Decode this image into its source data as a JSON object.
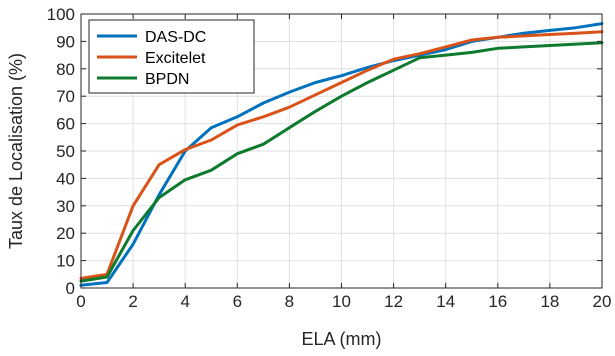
{
  "chart_data": {
    "type": "line",
    "xlabel": "ELA (mm)",
    "ylabel": "Taux de Localisation (%)",
    "xlim": [
      0,
      20
    ],
    "ylim": [
      0,
      100
    ],
    "xticks": [
      0,
      2,
      4,
      6,
      8,
      10,
      12,
      14,
      16,
      18,
      20
    ],
    "yticks": [
      0,
      10,
      20,
      30,
      40,
      50,
      60,
      70,
      80,
      90,
      100
    ],
    "grid": true,
    "legend_position": "top-left",
    "x": [
      0,
      1,
      2,
      3,
      4,
      5,
      6,
      7,
      8,
      9,
      10,
      11,
      12,
      13,
      14,
      15,
      16,
      17,
      18,
      19,
      20
    ],
    "series": [
      {
        "name": "DAS-DC",
        "color": "#0072BD",
        "values": [
          1,
          2,
          16,
          34,
          50,
          58.5,
          62.5,
          67.5,
          71.5,
          75,
          77.5,
          80.5,
          83,
          85,
          87,
          90,
          91.5,
          93,
          94,
          95,
          96.5
        ]
      },
      {
        "name": "Excitelet",
        "color": "#D95319",
        "values": [
          3.5,
          5,
          30,
          45,
          50.5,
          54,
          59.5,
          62.5,
          66,
          70.5,
          75,
          79.5,
          83.5,
          85.5,
          88,
          90.5,
          91.5,
          92,
          92.5,
          93,
          93.5
        ]
      },
      {
        "name": "BPDN",
        "color": "#0D7A2E",
        "values": [
          2.5,
          4,
          21,
          33,
          39.5,
          43,
          49,
          52.5,
          58.5,
          64.5,
          70,
          75,
          79.5,
          84,
          85,
          86,
          87.5,
          88,
          88.5,
          89,
          89.5
        ]
      }
    ]
  }
}
